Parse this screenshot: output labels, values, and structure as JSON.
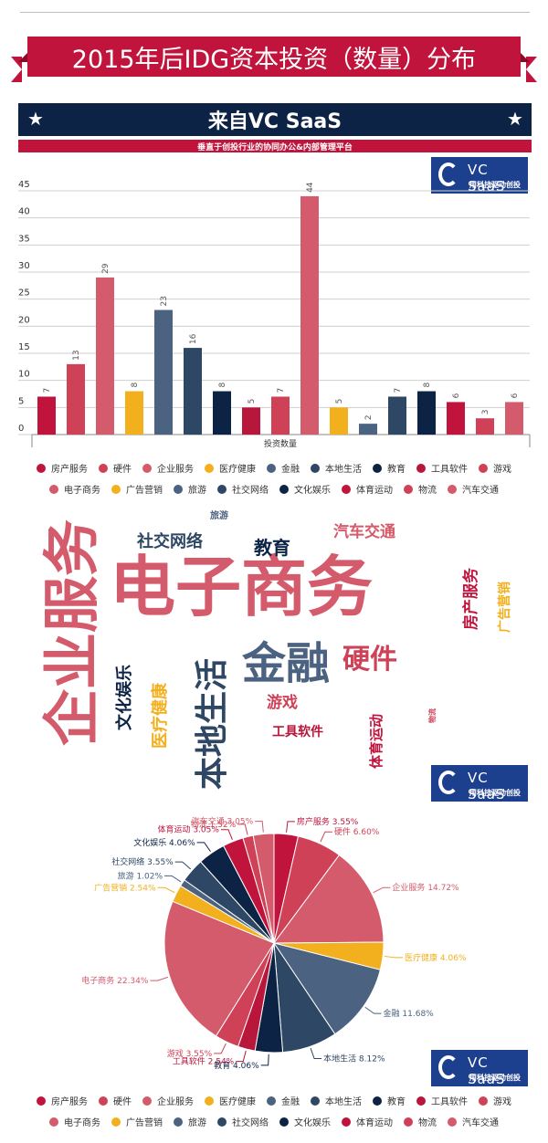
{
  "title": "2015年后IDG资本投资（数量）分布",
  "banner": {
    "title": "来自VC SaaS",
    "subtitle": "垂直于创投行业的协同办公&内部管理平台"
  },
  "logo": {
    "name": "VC SaaS",
    "tagline": "用科技驱动创投"
  },
  "colors": {
    "red": "#c0143c",
    "pink": "#d45b6b",
    "gold": "#f2b01e",
    "slate": "#4b6280",
    "navy": "#0c2345",
    "dark_slate": "#2e4764"
  },
  "legend": [
    {
      "label": "房产服务",
      "color": "#c0143c"
    },
    {
      "label": "硬件",
      "color": "#cf4157"
    },
    {
      "label": "企业服务",
      "color": "#d45b6b"
    },
    {
      "label": "医疗健康",
      "color": "#f2b01e"
    },
    {
      "label": "金融",
      "color": "#4b6280"
    },
    {
      "label": "本地生活",
      "color": "#2e4764"
    },
    {
      "label": "教育",
      "color": "#0c2345"
    },
    {
      "label": "工具软件",
      "color": "#b8163b"
    },
    {
      "label": "游戏",
      "color": "#cf4157"
    },
    {
      "label": "电子商务",
      "color": "#d45b6b"
    },
    {
      "label": "广告营销",
      "color": "#f2b01e"
    },
    {
      "label": "旅游",
      "color": "#4b6280"
    },
    {
      "label": "社交网络",
      "color": "#2e4764"
    },
    {
      "label": "文化娱乐",
      "color": "#0c2345"
    },
    {
      "label": "体育运动",
      "color": "#c0143c"
    },
    {
      "label": "物流",
      "color": "#cf4157"
    },
    {
      "label": "汽车交通",
      "color": "#d45b6b"
    }
  ],
  "chart_data": [
    {
      "type": "bar",
      "xlabel": "投资数量",
      "ylim": [
        0,
        45
      ],
      "yticks": [
        0,
        5,
        10,
        15,
        20,
        25,
        30,
        35,
        40,
        45
      ],
      "grid": true,
      "categories": [
        "房产服务",
        "硬件",
        "企业服务",
        "医疗健康",
        "金融",
        "本地生活",
        "教育",
        "工具软件",
        "游戏",
        "电子商务",
        "广告营销",
        "旅游",
        "社交网络",
        "文化娱乐",
        "体育运动",
        "物流",
        "汽车交通"
      ],
      "values": [
        7,
        13,
        29,
        8,
        23,
        16,
        8,
        5,
        7,
        44,
        5,
        2,
        7,
        8,
        6,
        3,
        6
      ],
      "legend_position": "bottom"
    },
    {
      "type": "pie",
      "legend_position": "bottom",
      "slices": [
        {
          "label": "房产服务",
          "value": 3.55
        },
        {
          "label": "硬件",
          "value": 6.6
        },
        {
          "label": "企业服务",
          "value": 14.72
        },
        {
          "label": "医疗健康",
          "value": 4.06
        },
        {
          "label": "金融",
          "value": 11.68
        },
        {
          "label": "本地生活",
          "value": 8.12
        },
        {
          "label": "教育",
          "value": 4.06
        },
        {
          "label": "工具软件",
          "value": 2.54
        },
        {
          "label": "游戏",
          "value": 3.55
        },
        {
          "label": "电子商务",
          "value": 22.34
        },
        {
          "label": "广告营销",
          "value": 2.54
        },
        {
          "label": "旅游",
          "value": 1.02
        },
        {
          "label": "社交网络",
          "value": 3.55
        },
        {
          "label": "文化娱乐",
          "value": 4.06
        },
        {
          "label": "体育运动",
          "value": 3.05
        },
        {
          "label": "物流",
          "value": 1.52
        },
        {
          "label": "汽车交通",
          "value": 3.05
        }
      ]
    }
  ],
  "wordcloud": [
    {
      "text": "电子商务"
    },
    {
      "text": "企业服务"
    },
    {
      "text": "金融"
    },
    {
      "text": "本地生活"
    },
    {
      "text": "硬件"
    },
    {
      "text": "社交网络"
    },
    {
      "text": "教育"
    },
    {
      "text": "汽车交通"
    },
    {
      "text": "旅游"
    },
    {
      "text": "房产服务"
    },
    {
      "text": "广告营销"
    },
    {
      "text": "文化娱乐"
    },
    {
      "text": "医疗健康"
    },
    {
      "text": "游戏"
    },
    {
      "text": "工具软件"
    },
    {
      "text": "体育运动"
    },
    {
      "text": "物流"
    }
  ]
}
